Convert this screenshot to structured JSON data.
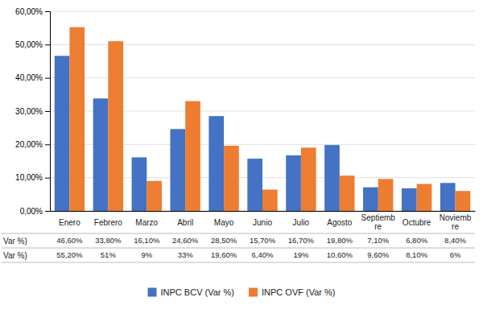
{
  "chart_data": {
    "type": "bar",
    "categories": [
      "Enero",
      "Febrero",
      "Marzo",
      "Abril",
      "Mayo",
      "Junio",
      "Julio",
      "Agosto",
      "Septiemb\nre",
      "Octubre",
      "Noviemb\nre"
    ],
    "series": [
      {
        "name": "INPC BCV (Var %)",
        "color": "#4472C4",
        "row_label": "Var %)",
        "values": [
          46.6,
          33.8,
          16.1,
          24.6,
          28.5,
          15.7,
          16.7,
          19.8,
          7.1,
          6.8,
          8.4
        ],
        "value_labels": [
          "46,60%",
          "33,80%",
          "16,10%",
          "24,60%",
          "28,50%",
          "15,70%",
          "16,70%",
          "19,80%",
          "7,10%",
          "6,80%",
          "8,40%"
        ]
      },
      {
        "name": "INPC OVF (Var %)",
        "color": "#ED7D31",
        "row_label": "Var %)",
        "values": [
          55.2,
          51.0,
          9.0,
          33.0,
          19.6,
          6.4,
          19.0,
          10.6,
          9.6,
          8.1,
          6.0
        ],
        "value_labels": [
          "55,20%",
          "51%",
          "9%",
          "33%",
          "19,60%",
          "6,40%",
          "19%",
          "10,60%",
          "9,60%",
          "8,10%",
          "6%"
        ]
      }
    ],
    "ylim": [
      0,
      60
    ],
    "yticks": [
      {
        "value": 0,
        "label": "0,00%"
      },
      {
        "value": 10,
        "label": "10,00%"
      },
      {
        "value": 20,
        "label": "20,00%"
      },
      {
        "value": 30,
        "label": "30,00%"
      },
      {
        "value": 40,
        "label": "40,00%"
      },
      {
        "value": 50,
        "label": "50,00%"
      },
      {
        "value": 60,
        "label": "60,00%"
      }
    ],
    "grid": true,
    "legend": "bottom"
  }
}
